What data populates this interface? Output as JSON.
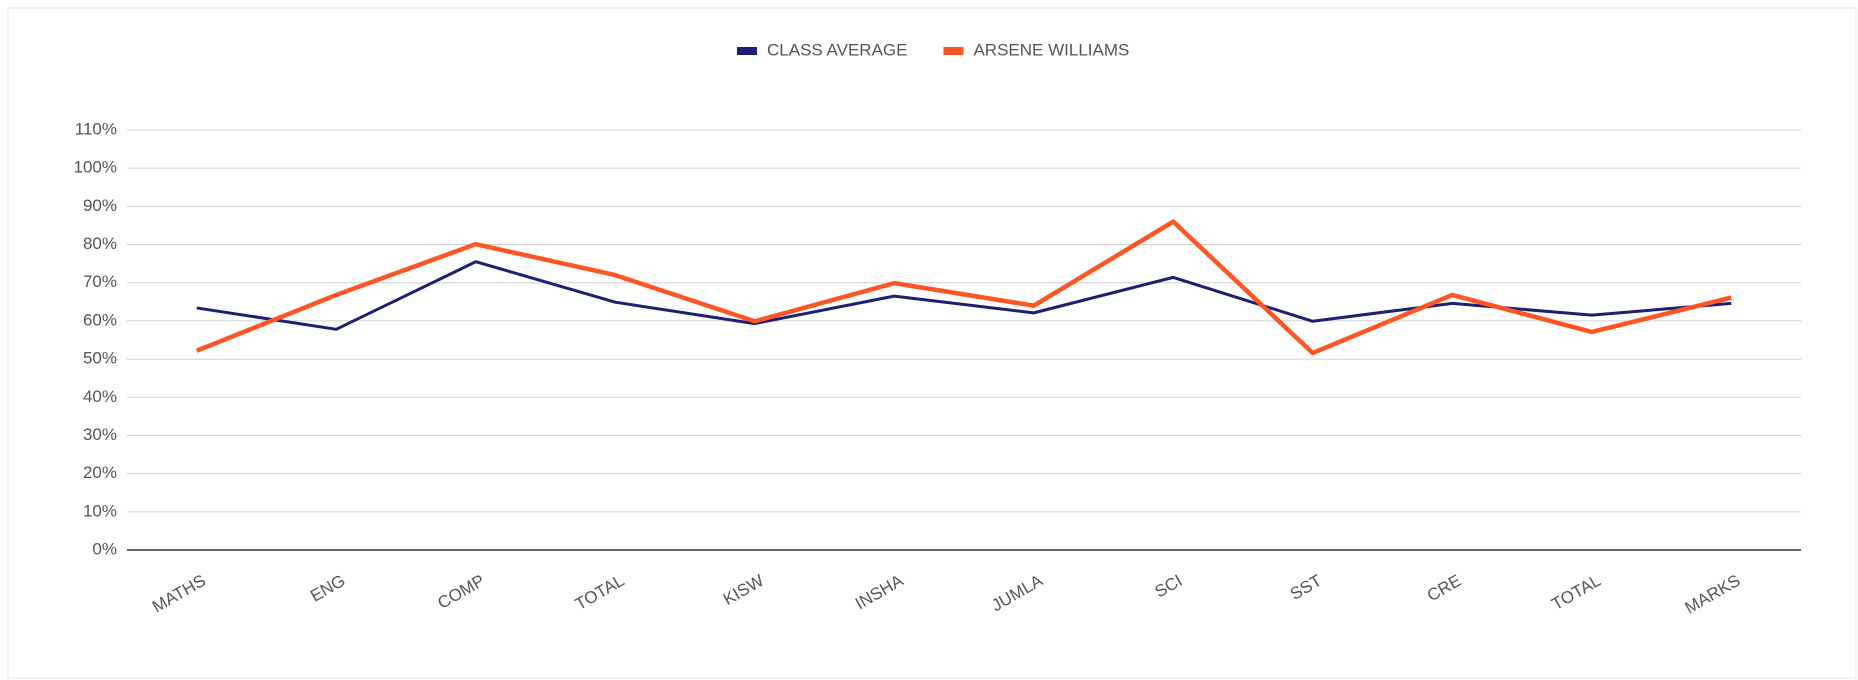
{
  "chart_data": {
    "type": "line",
    "categories": [
      "MATHS",
      "ENG",
      "COMP",
      "TOTAL",
      "KISW",
      "INSHA",
      "JUMLA",
      "SCI",
      "SST",
      "CRE",
      "TOTAL",
      "MARKS"
    ],
    "series": [
      {
        "name": "CLASS AVERAGE",
        "color": "#1c1f75",
        "values": [
          63.4,
          57.8,
          75.5,
          64.9,
          59.3,
          66.5,
          62.1,
          71.4,
          59.9,
          64.6,
          61.5,
          64.6
        ]
      },
      {
        "name": "ARSENE WILLIAMS",
        "color": "#fd5523",
        "values": [
          52.2,
          66.8,
          80.1,
          72,
          59.9,
          69.9,
          64,
          86,
          51.6,
          66.8,
          57.1,
          66.1
        ]
      }
    ],
    "ylim": [
      0,
      110
    ],
    "yticks": [
      {
        "value": 0,
        "label": "0%"
      },
      {
        "value": 10,
        "label": "10%"
      },
      {
        "value": 20,
        "label": "20%"
      },
      {
        "value": 30,
        "label": "30%"
      },
      {
        "value": 40,
        "label": "40%"
      },
      {
        "value": 50,
        "label": "50%"
      },
      {
        "value": 60,
        "label": "60%"
      },
      {
        "value": 70,
        "label": "70%"
      },
      {
        "value": 80,
        "label": "80%"
      },
      {
        "value": 90,
        "label": "90%"
      },
      {
        "value": 100,
        "label": "100%"
      },
      {
        "value": 110,
        "label": "110%"
      }
    ],
    "grid": true,
    "legend": "top"
  }
}
